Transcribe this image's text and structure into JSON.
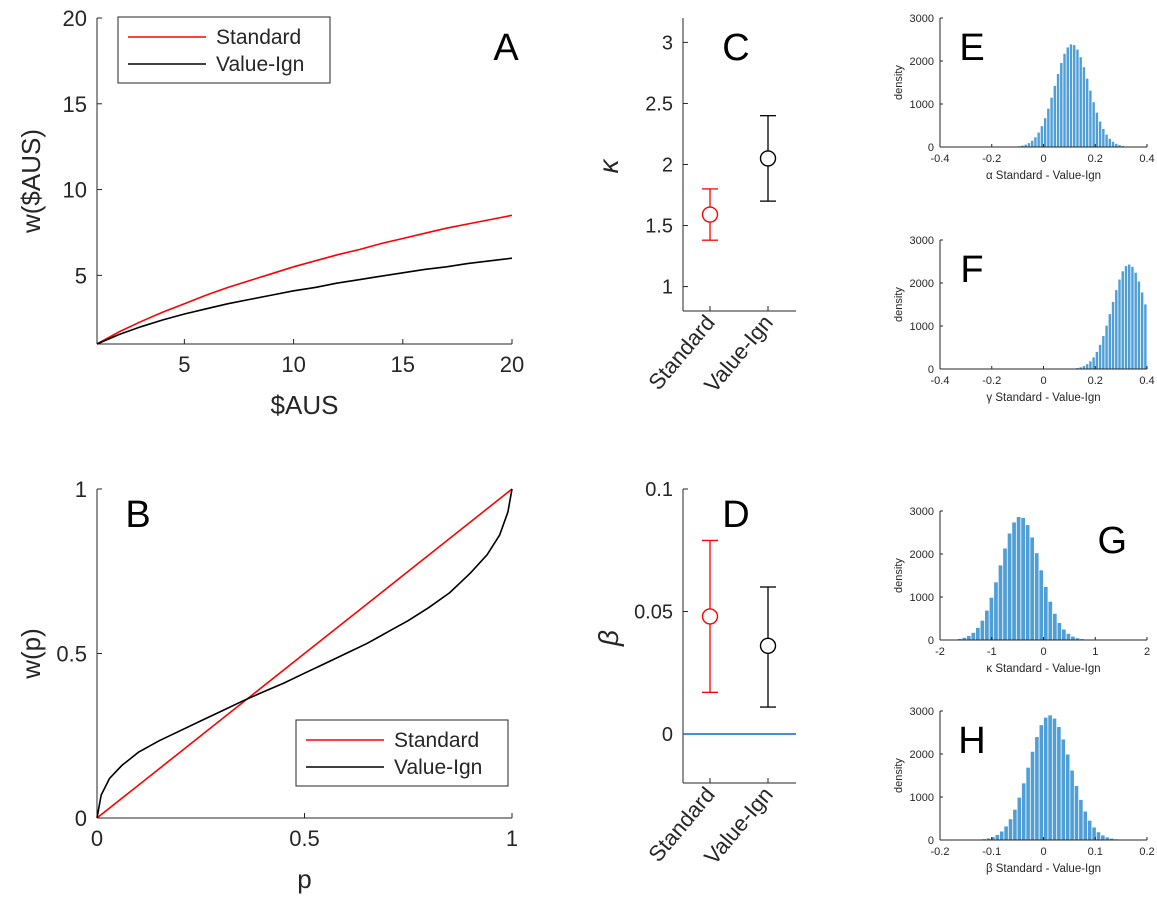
{
  "colors": {
    "standard": "#ff0000",
    "value_ign": "#000000",
    "bars": "#4f9fd6",
    "zero_line": "#0072bd",
    "axis": "#262626"
  },
  "chart_data": [
    {
      "panel": "A",
      "type": "line",
      "xlabel": "$AUS",
      "ylabel": "w($AUS)",
      "xlim": [
        1,
        20
      ],
      "ylim": [
        1,
        20
      ],
      "xticks": [
        5,
        10,
        15,
        20
      ],
      "yticks": [
        5,
        10,
        15,
        20
      ],
      "legend": {
        "position": "top-left",
        "entries": [
          "Standard",
          "Value-Ign"
        ]
      },
      "series": [
        {
          "name": "Standard",
          "color": "#ff0000",
          "x": [
            1,
            2,
            3,
            4,
            5,
            6,
            7,
            8,
            9,
            10,
            11,
            12,
            13,
            14,
            15,
            16,
            17,
            18,
            19,
            20
          ],
          "y": [
            1.0,
            1.7,
            2.3,
            2.85,
            3.35,
            3.85,
            4.3,
            4.7,
            5.1,
            5.5,
            5.85,
            6.2,
            6.5,
            6.85,
            7.15,
            7.45,
            7.75,
            8.0,
            8.25,
            8.5
          ]
        },
        {
          "name": "Value-Ign",
          "color": "#000000",
          "x": [
            1,
            2,
            3,
            4,
            5,
            6,
            7,
            8,
            9,
            10,
            11,
            12,
            13,
            14,
            15,
            16,
            17,
            18,
            19,
            20
          ],
          "y": [
            1.0,
            1.55,
            2.0,
            2.4,
            2.75,
            3.05,
            3.35,
            3.6,
            3.85,
            4.1,
            4.3,
            4.55,
            4.75,
            4.95,
            5.15,
            5.35,
            5.5,
            5.7,
            5.85,
            6.0
          ]
        }
      ]
    },
    {
      "panel": "B",
      "type": "line",
      "xlabel": "p",
      "ylabel": "w(p)",
      "xlim": [
        0,
        1
      ],
      "ylim": [
        0,
        1
      ],
      "xticks": [
        0,
        0.5,
        1
      ],
      "yticks": [
        0,
        0.5,
        1
      ],
      "xtick_labels": [
        "0",
        "0.5",
        "1"
      ],
      "ytick_labels": [
        "0",
        "0.5",
        "1"
      ],
      "legend": {
        "position": "bottom-right",
        "entries": [
          "Standard",
          "Value-Ign"
        ]
      },
      "series": [
        {
          "name": "Standard",
          "color": "#ff0000",
          "x": [
            0,
            0.25,
            0.5,
            0.75,
            1
          ],
          "y": [
            0,
            0.25,
            0.5,
            0.75,
            1
          ]
        },
        {
          "name": "Value-Ign",
          "color": "#000000",
          "x": [
            0,
            0.01,
            0.03,
            0.06,
            0.1,
            0.15,
            0.2,
            0.25,
            0.3,
            0.35,
            0.4,
            0.45,
            0.5,
            0.55,
            0.6,
            0.65,
            0.7,
            0.75,
            0.8,
            0.85,
            0.9,
            0.94,
            0.97,
            0.99,
            1.0
          ],
          "y": [
            0,
            0.07,
            0.12,
            0.16,
            0.2,
            0.235,
            0.265,
            0.295,
            0.325,
            0.355,
            0.383,
            0.41,
            0.44,
            0.47,
            0.5,
            0.53,
            0.565,
            0.6,
            0.64,
            0.685,
            0.745,
            0.8,
            0.86,
            0.93,
            1.0
          ]
        }
      ]
    },
    {
      "panel": "C",
      "type": "scatter",
      "ylabel": "κ",
      "categories": [
        "Standard",
        "Value-Ign"
      ],
      "ylim": [
        0.8,
        3.2
      ],
      "yticks": [
        1,
        1.5,
        2,
        2.5,
        3
      ],
      "ytick_labels": [
        "1",
        "1.5",
        "2",
        "2.5",
        "3"
      ],
      "series": [
        {
          "name": "Standard",
          "color": "#ff0000",
          "value": 1.59,
          "lower": 1.38,
          "upper": 1.8
        },
        {
          "name": "Value-Ign",
          "color": "#000000",
          "value": 2.05,
          "lower": 1.7,
          "upper": 2.4
        }
      ]
    },
    {
      "panel": "D",
      "type": "scatter",
      "ylabel": "β",
      "categories": [
        "Standard",
        "Value-Ign"
      ],
      "ylim": [
        -0.02,
        0.1
      ],
      "yticks": [
        0,
        0.05,
        0.1
      ],
      "ytick_labels": [
        "0",
        "0.05",
        "0.1"
      ],
      "reference_line": 0,
      "series": [
        {
          "name": "Standard",
          "color": "#ff0000",
          "value": 0.048,
          "lower": 0.017,
          "upper": 0.079
        },
        {
          "name": "Value-Ign",
          "color": "#000000",
          "value": 0.036,
          "lower": 0.011,
          "upper": 0.06
        }
      ]
    },
    {
      "panel": "E",
      "type": "bar",
      "xlabel": "α Standard - Value-Ign",
      "ylabel": "density",
      "xlim": [
        -0.4,
        0.4
      ],
      "ylim": [
        0,
        3000
      ],
      "xticks": [
        -0.4,
        -0.2,
        0,
        0.2,
        0.4
      ],
      "xtick_labels": [
        "-0.4",
        "-0.2",
        "0",
        "0.2",
        "0.4"
      ],
      "yticks": [
        0,
        1000,
        2000,
        3000
      ],
      "ytick_labels": [
        "0",
        "1000",
        "2000",
        "3000"
      ],
      "histogram": {
        "mean": 0.11,
        "sd": 0.065,
        "peak": 2390,
        "bin_width": 0.0125
      }
    },
    {
      "panel": "F",
      "type": "bar",
      "xlabel": "γ Standard - Value-Ign",
      "ylabel": "density",
      "xlim": [
        -0.4,
        0.4
      ],
      "ylim": [
        0,
        3000
      ],
      "xticks": [
        -0.4,
        -0.2,
        0,
        0.2,
        0.4
      ],
      "xtick_labels": [
        "-0.4",
        "-0.2",
        "0",
        "0.2",
        "0.4"
      ],
      "yticks": [
        0,
        1000,
        2000,
        3000
      ],
      "ytick_labels": [
        "0",
        "1000",
        "2000",
        "3000"
      ],
      "histogram": {
        "mean": 0.33,
        "sd": 0.065,
        "peak": 2430,
        "bin_width": 0.0125
      }
    },
    {
      "panel": "G",
      "type": "bar",
      "xlabel": "κ Standard - Value-Ign",
      "ylabel": "density",
      "xlim": [
        -2,
        2
      ],
      "ylim": [
        0,
        3000
      ],
      "xticks": [
        -2,
        -1,
        0,
        1,
        2
      ],
      "xtick_labels": [
        "-2",
        "-1",
        "0",
        "1",
        "2"
      ],
      "yticks": [
        0,
        1000,
        2000,
        3000
      ],
      "ytick_labels": [
        "0",
        "1000",
        "2000",
        "3000"
      ],
      "histogram": {
        "mean": -0.45,
        "sd": 0.38,
        "peak": 2870,
        "bin_width": 0.0875
      }
    },
    {
      "panel": "H",
      "type": "bar",
      "xlabel": "β Standard - Value-Ign",
      "ylabel": "density",
      "xlim": [
        -0.2,
        0.2
      ],
      "ylim": [
        0,
        3000
      ],
      "xticks": [
        -0.2,
        -0.1,
        0,
        0.1,
        0.2
      ],
      "xtick_labels": [
        "-0.2",
        "-0.1",
        "0",
        "0.1",
        "0.2"
      ],
      "yticks": [
        0,
        1000,
        2000,
        3000
      ],
      "ytick_labels": [
        "0",
        "1000",
        "2000",
        "3000"
      ],
      "histogram": {
        "mean": 0.012,
        "sd": 0.04,
        "peak": 2900,
        "bin_width": 0.0085
      }
    }
  ]
}
